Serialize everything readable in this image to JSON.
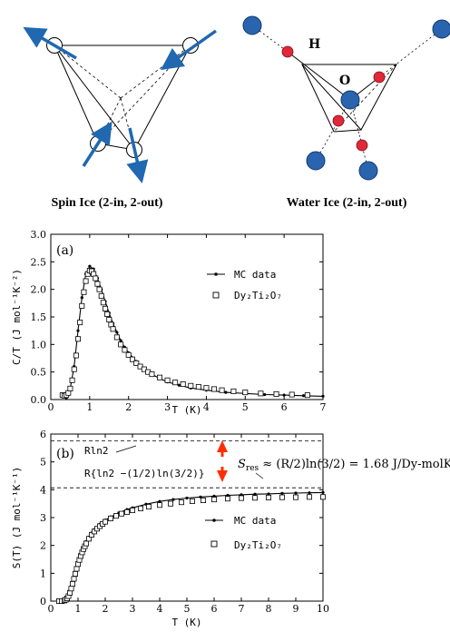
{
  "diagrams": {
    "spin_ice_caption": "Spin Ice (2-in, 2-out)",
    "water_ice_caption": "Water Ice (2-in, 2-out)",
    "label_h": "H",
    "label_o": "O",
    "colors": {
      "arrow": "#2068b0",
      "oxygen": "#2a64ae",
      "hydrogen": "#e02838"
    }
  },
  "chart_data": [
    {
      "type": "line",
      "panel_label": "(a)",
      "xlabel": "T (K)",
      "ylabel": "C/T (J mol⁻¹K⁻²)",
      "xlim": [
        0,
        7
      ],
      "ylim": [
        0,
        3
      ],
      "x_ticks": [
        0,
        1,
        2,
        3,
        4,
        5,
        6,
        7
      ],
      "y_ticks": [
        0.0,
        0.5,
        1.0,
        1.5,
        2.0,
        2.5,
        3.0
      ],
      "y_tick_labels": [
        "0.0",
        "0.5",
        "1.0",
        "1.5",
        "2.0",
        "2.5",
        "3.0"
      ],
      "legend": [
        "MC data",
        "Dy₂Ti₂O₇"
      ],
      "series": [
        {
          "name": "MC data",
          "style": "line-dots",
          "x": [
            0.4,
            0.5,
            0.6,
            0.7,
            0.8,
            0.9,
            1.0,
            1.1,
            1.2,
            1.3,
            1.4,
            1.5,
            1.6,
            1.7,
            1.8,
            1.9,
            2.0,
            2.2,
            2.4,
            2.6,
            2.8,
            3.0,
            3.3,
            3.6,
            4.0,
            4.5,
            5.0,
            5.5,
            6.0,
            6.5,
            7.0
          ],
          "y": [
            0.03,
            0.2,
            0.6,
            1.25,
            1.85,
            2.28,
            2.42,
            2.37,
            2.2,
            2.0,
            1.78,
            1.57,
            1.38,
            1.22,
            1.07,
            0.95,
            0.85,
            0.69,
            0.56,
            0.46,
            0.38,
            0.32,
            0.26,
            0.21,
            0.17,
            0.13,
            0.11,
            0.09,
            0.08,
            0.07,
            0.06
          ]
        },
        {
          "name": "Dy₂Ti₂O₇",
          "style": "open-squares",
          "x": [
            0.3,
            0.35,
            0.4,
            0.45,
            0.5,
            0.55,
            0.6,
            0.65,
            0.7,
            0.75,
            0.8,
            0.85,
            0.9,
            0.95,
            1.0,
            1.05,
            1.1,
            1.15,
            1.2,
            1.25,
            1.3,
            1.35,
            1.4,
            1.45,
            1.5,
            1.55,
            1.6,
            1.7,
            1.8,
            1.9,
            2.0,
            2.1,
            2.2,
            2.3,
            2.4,
            2.5,
            2.6,
            2.8,
            3.0,
            3.2,
            3.4,
            3.6,
            3.8,
            4.0,
            4.2,
            4.4,
            4.7,
            5.0,
            5.4,
            5.8,
            6.2,
            6.6
          ],
          "y": [
            0.08,
            0.07,
            0.08,
            0.12,
            0.2,
            0.35,
            0.55,
            0.8,
            1.1,
            1.4,
            1.7,
            1.95,
            2.15,
            2.28,
            2.34,
            2.33,
            2.28,
            2.2,
            2.1,
            2.0,
            1.88,
            1.76,
            1.65,
            1.55,
            1.45,
            1.36,
            1.28,
            1.13,
            1.0,
            0.9,
            0.81,
            0.73,
            0.66,
            0.6,
            0.55,
            0.5,
            0.46,
            0.4,
            0.35,
            0.31,
            0.28,
            0.25,
            0.23,
            0.21,
            0.19,
            0.17,
            0.15,
            0.13,
            0.11,
            0.1,
            0.09,
            0.08
          ]
        }
      ]
    },
    {
      "type": "line",
      "panel_label": "(b)",
      "xlabel": "T (K)",
      "ylabel": "S(T) (J mol⁻¹K⁻¹)",
      "xlim": [
        0,
        10
      ],
      "ylim": [
        0,
        6
      ],
      "x_ticks": [
        0,
        1,
        2,
        3,
        4,
        5,
        6,
        7,
        8,
        9,
        10
      ],
      "y_ticks": [
        0,
        1,
        2,
        3,
        4,
        5,
        6
      ],
      "y_tick_labels": [
        "0",
        "1",
        "2",
        "3",
        "4",
        "5",
        "6"
      ],
      "legend": [
        "MC data",
        "Dy₂Ti₂O₇"
      ],
      "reference_lines": [
        {
          "label": "Rln2",
          "y": 5.76
        },
        {
          "label": "R{ln2 −(1/2)ln(3/2)}",
          "y": 4.07
        }
      ],
      "annotation": "S_res ≈ (R/2)ln(3/2) = 1.68 J/Dy-molK",
      "series": [
        {
          "name": "MC data",
          "style": "line-dots",
          "x": [
            0.3,
            0.5,
            0.6,
            0.7,
            0.8,
            0.9,
            1.0,
            1.1,
            1.2,
            1.3,
            1.4,
            1.5,
            1.6,
            1.8,
            2.0,
            2.2,
            2.5,
            2.8,
            3.0,
            3.5,
            4.0,
            4.5,
            5.0,
            5.5,
            6.0,
            6.5,
            7.0,
            7.5,
            8.0,
            8.5,
            9.0,
            9.5,
            10.0
          ],
          "y": [
            0.0,
            0.05,
            0.18,
            0.4,
            0.72,
            1.05,
            1.38,
            1.68,
            1.93,
            2.14,
            2.3,
            2.45,
            2.57,
            2.76,
            2.91,
            3.03,
            3.17,
            3.29,
            3.35,
            3.48,
            3.58,
            3.65,
            3.7,
            3.74,
            3.77,
            3.8,
            3.82,
            3.84,
            3.85,
            3.87,
            3.88,
            3.89,
            3.9
          ]
        },
        {
          "name": "Dy₂Ti₂O₇",
          "style": "open-squares",
          "x": [
            0.3,
            0.4,
            0.5,
            0.55,
            0.6,
            0.65,
            0.7,
            0.75,
            0.8,
            0.85,
            0.9,
            0.95,
            1.0,
            1.05,
            1.1,
            1.15,
            1.2,
            1.25,
            1.3,
            1.4,
            1.5,
            1.6,
            1.7,
            1.8,
            1.9,
            2.0,
            2.2,
            2.4,
            2.6,
            2.8,
            3.0,
            3.3,
            3.6,
            4.0,
            4.4,
            4.8,
            5.2,
            5.6,
            6.0,
            6.5,
            7.0,
            7.5,
            8.0,
            8.5,
            9.0,
            9.5,
            10.0
          ],
          "y": [
            0.0,
            0.0,
            0.02,
            0.05,
            0.1,
            0.18,
            0.3,
            0.45,
            0.62,
            0.8,
            0.98,
            1.16,
            1.33,
            1.48,
            1.62,
            1.75,
            1.87,
            1.97,
            2.07,
            2.24,
            2.38,
            2.5,
            2.6,
            2.69,
            2.77,
            2.85,
            2.97,
            3.06,
            3.14,
            3.2,
            3.26,
            3.33,
            3.39,
            3.45,
            3.5,
            3.55,
            3.59,
            3.62,
            3.65,
            3.68,
            3.7,
            3.71,
            3.72,
            3.73,
            3.73,
            3.74,
            3.74
          ]
        }
      ]
    }
  ]
}
